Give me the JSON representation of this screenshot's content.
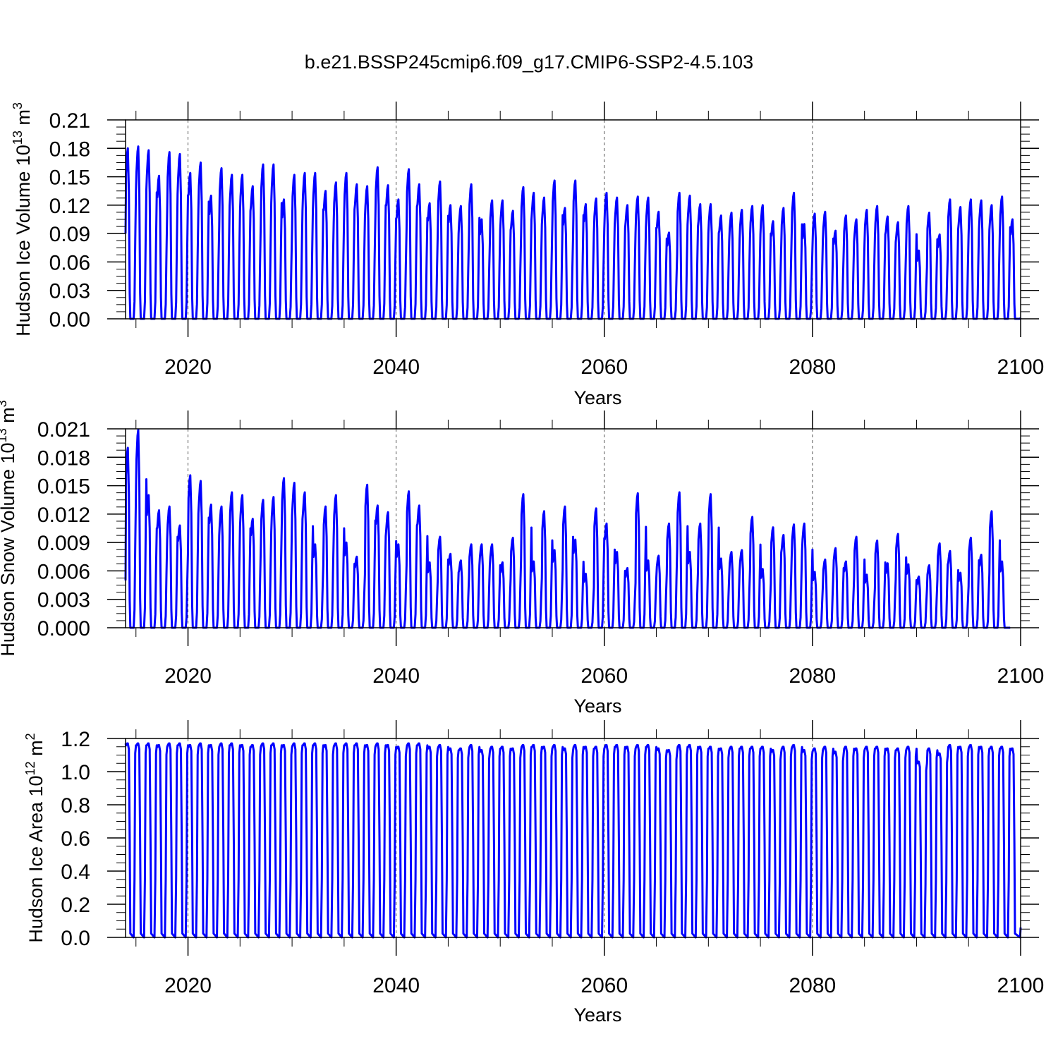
{
  "title": "b.e21.BSSP245cmip6.f09_g17.CMIP6-SSP2-4.5.103",
  "colors": {
    "line": "#0000ff",
    "frame": "#000000",
    "grid": "#555555"
  },
  "chart_data": [
    {
      "type": "line",
      "name_label": "Hudson Ice Volume",
      "ylabel_parts": {
        "text": "Hudson Ice Volume 10",
        "exponent": "13",
        "unit": " m",
        "unit_exponent": "3"
      },
      "xlabel": "Years",
      "xlim": [
        2014,
        2100
      ],
      "xticks": [
        2020,
        2040,
        2060,
        2080,
        2100
      ],
      "ylim": [
        0,
        0.21
      ],
      "yticks": [
        "0.00",
        "0.03",
        "0.06",
        "0.09",
        "0.12",
        "0.15",
        "0.18",
        "0.21"
      ],
      "ytick_values": [
        0,
        0.03,
        0.06,
        0.09,
        0.12,
        0.15,
        0.18,
        0.21
      ],
      "start_value": 0.09,
      "annual_peaks": [
        0.18,
        0.182,
        0.178,
        0.151,
        0.176,
        0.174,
        0.154,
        0.165,
        0.13,
        0.159,
        0.152,
        0.152,
        0.14,
        0.163,
        0.163,
        0.126,
        0.152,
        0.154,
        0.154,
        0.135,
        0.144,
        0.154,
        0.142,
        0.14,
        0.16,
        0.141,
        0.126,
        0.158,
        0.142,
        0.122,
        0.145,
        0.12,
        0.119,
        0.142,
        0.105,
        0.125,
        0.125,
        0.114,
        0.139,
        0.133,
        0.128,
        0.146,
        0.117,
        0.146,
        0.121,
        0.127,
        0.133,
        0.128,
        0.12,
        0.129,
        0.128,
        0.113,
        0.091,
        0.133,
        0.13,
        0.121,
        0.121,
        0.109,
        0.112,
        0.115,
        0.119,
        0.12,
        0.103,
        0.117,
        0.133,
        0.1,
        0.111,
        0.113,
        0.093,
        0.109,
        0.105,
        0.115,
        0.119,
        0.108,
        0.102,
        0.119,
        0.072,
        0.112,
        0.089,
        0.126,
        0.118,
        0.126,
        0.125,
        0.12,
        0.129,
        0.105
      ],
      "end_value": 0.001
    },
    {
      "type": "line",
      "name_label": "Hudson Snow Volume",
      "ylabel_parts": {
        "text": "Hudson Snow Volume 10",
        "exponent": "13",
        "unit": " m",
        "unit_exponent": "3"
      },
      "xlabel": "Years",
      "xlim": [
        2014,
        2100
      ],
      "xticks": [
        2020,
        2040,
        2060,
        2080,
        2100
      ],
      "ylim": [
        0,
        0.021
      ],
      "yticks": [
        "0.000",
        "0.003",
        "0.006",
        "0.009",
        "0.012",
        "0.015",
        "0.018",
        "0.021"
      ],
      "ytick_values": [
        0,
        0.003,
        0.006,
        0.009,
        0.012,
        0.015,
        0.018,
        0.021
      ],
      "start_value": 0.005,
      "annual_peaks": [
        0.019,
        0.0209,
        0.014,
        0.0124,
        0.0128,
        0.0108,
        0.0161,
        0.0155,
        0.013,
        0.0128,
        0.0143,
        0.014,
        0.0115,
        0.0135,
        0.0138,
        0.0158,
        0.0153,
        0.0143,
        0.0088,
        0.0128,
        0.014,
        0.009,
        0.0075,
        0.0151,
        0.0129,
        0.0122,
        0.0088,
        0.0144,
        0.0129,
        0.0069,
        0.0096,
        0.0078,
        0.0071,
        0.0088,
        0.0088,
        0.0088,
        0.0069,
        0.0095,
        0.0141,
        0.007,
        0.0123,
        0.0082,
        0.0128,
        0.0093,
        0.0057,
        0.0126,
        0.011,
        0.008,
        0.0063,
        0.0142,
        0.0071,
        0.0076,
        0.011,
        0.0143,
        0.008,
        0.011,
        0.0141,
        0.0073,
        0.008,
        0.0082,
        0.0117,
        0.0062,
        0.0106,
        0.0098,
        0.0109,
        0.011,
        0.0059,
        0.0072,
        0.0084,
        0.007,
        0.0096,
        0.0056,
        0.0092,
        0.0068,
        0.0099,
        0.0067,
        0.0054,
        0.0066,
        0.0089,
        0.0081,
        0.0058,
        0.0095,
        0.0077,
        0.0123,
        0.007
      ],
      "end_value": 0
    },
    {
      "type": "line",
      "name_label": "Hudson Ice Area",
      "ylabel_parts": {
        "text": "Hudson Ice Area 10",
        "exponent": "12",
        "unit": " m",
        "unit_exponent": "2"
      },
      "xlabel": "Years",
      "xlim": [
        2014,
        2100
      ],
      "xticks": [
        2020,
        2040,
        2060,
        2080,
        2100
      ],
      "ylim": [
        0,
        1.2
      ],
      "yticks": [
        "0.0",
        "0.2",
        "0.4",
        "0.6",
        "0.8",
        "1.0",
        "1.2"
      ],
      "ytick_values": [
        0,
        0.2,
        0.4,
        0.6,
        0.8,
        1.0,
        1.2
      ],
      "start_value": 1.17,
      "annual_peaks": [
        1.17,
        1.17,
        1.17,
        1.16,
        1.17,
        1.17,
        1.16,
        1.17,
        1.16,
        1.17,
        1.17,
        1.16,
        1.16,
        1.17,
        1.17,
        1.16,
        1.17,
        1.17,
        1.17,
        1.16,
        1.17,
        1.17,
        1.17,
        1.16,
        1.17,
        1.16,
        1.15,
        1.17,
        1.17,
        1.15,
        1.16,
        1.14,
        1.14,
        1.16,
        1.13,
        1.15,
        1.15,
        1.14,
        1.16,
        1.16,
        1.15,
        1.16,
        1.14,
        1.16,
        1.15,
        1.15,
        1.16,
        1.16,
        1.15,
        1.16,
        1.16,
        1.14,
        1.13,
        1.16,
        1.16,
        1.15,
        1.15,
        1.14,
        1.15,
        1.15,
        1.15,
        1.15,
        1.13,
        1.15,
        1.16,
        1.13,
        1.14,
        1.15,
        1.12,
        1.15,
        1.14,
        1.15,
        1.15,
        1.14,
        1.14,
        1.15,
        1.06,
        1.14,
        1.11,
        1.16,
        1.15,
        1.16,
        1.15,
        1.15,
        1.15,
        1.14
      ],
      "end_value": 0.06
    }
  ]
}
